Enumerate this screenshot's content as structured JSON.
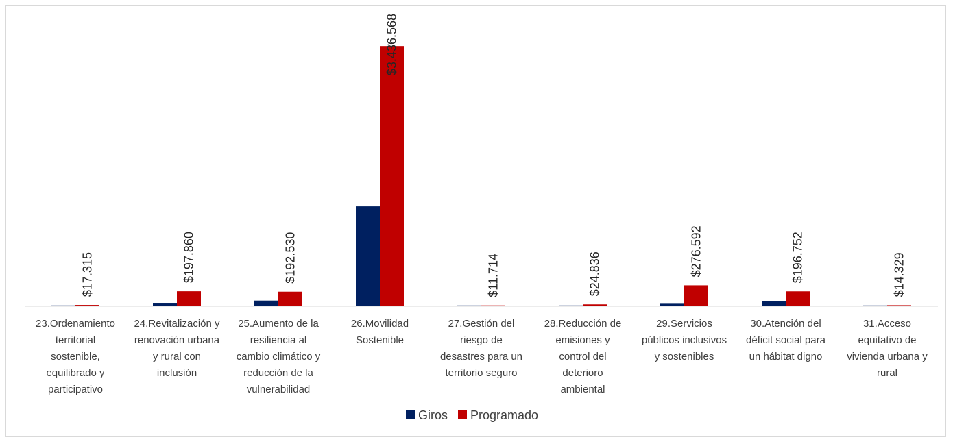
{
  "chart_data": {
    "type": "bar",
    "categories": [
      "23.Ordenamiento territorial sostenible, equilibrado y participativo",
      "24.Revitalización y renovación urbana y rural con inclusión",
      "25.Aumento de la resiliencia al cambio climático y reducción de la vulnerabilidad",
      "26.Movilidad Sostenible",
      "27.Gestión del riesgo de desastres para un territorio seguro",
      "28.Reducción de emisiones y control del deterioro ambiental",
      "29.Servicios públicos inclusivos y sostenibles",
      "30.Atención del déficit social para un hábitat digno",
      "31.Acceso equitativo de vivienda urbana y rural"
    ],
    "category_lines": [
      [
        "23.Ordenamiento",
        "territorial",
        "sostenible,",
        "equilibrado y",
        "participativo"
      ],
      [
        "24.Revitalización y",
        "renovación urbana",
        "y rural con",
        "inclusión"
      ],
      [
        "25.Aumento de la",
        "resiliencia al",
        "cambio climático y",
        "reducción de la",
        "vulnerabilidad"
      ],
      [
        "26.Movilidad",
        "Sostenible"
      ],
      [
        "27.Gestión del",
        "riesgo de",
        "desastres para un",
        "territorio seguro"
      ],
      [
        "28.Reducción de",
        "emisiones y",
        "control del",
        "deterioro",
        "ambiental"
      ],
      [
        "29.Servicios",
        "públicos inclusivos",
        "y sostenibles"
      ],
      [
        "30.Atención del",
        "déficit social para",
        "un hábitat digno"
      ],
      [
        "31.Acceso",
        "equitativo de",
        "vivienda urbana y",
        "rural"
      ]
    ],
    "series": [
      {
        "name": "Giros",
        "color": "#002060",
        "values": [
          2500,
          45000,
          75000,
          1320000,
          1200,
          3000,
          42000,
          70000,
          2000
        ]
      },
      {
        "name": "Programado",
        "color": "#C00000",
        "values": [
          17315,
          197860,
          192530,
          3436568,
          11714,
          24836,
          276592,
          196752,
          14329
        ]
      }
    ],
    "data_labels": [
      "$17.315",
      "$197.860",
      "$192.530",
      "$3.436.568",
      "$11.714",
      "$24.836",
      "$276.592",
      "$196.752",
      "$14.329"
    ],
    "ylim": [
      0,
      3800000
    ],
    "grid": false,
    "legend": "bottom"
  }
}
